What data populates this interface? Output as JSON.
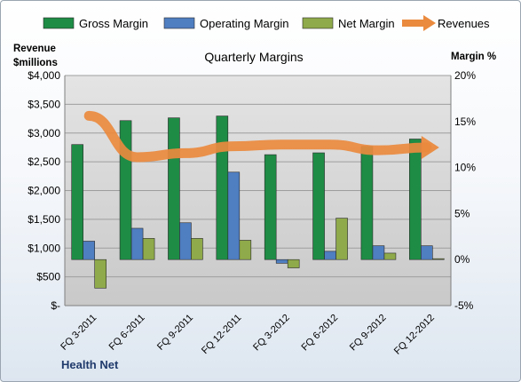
{
  "chart_data": {
    "type": "bar",
    "title": "Quarterly Margins",
    "company": "Health Net",
    "categories": [
      "FQ 3-2011",
      "FQ 6-2011",
      "FQ 9-2011",
      "FQ 12-2011",
      "FQ 3-2012",
      "FQ 6-2012",
      "FQ 9-2012",
      "FQ 12-2012"
    ],
    "left_axis": {
      "title_line1": "Revenue",
      "title_line2": "$millions",
      "range": [
        0,
        4000
      ],
      "ticks": [
        "$-",
        "$500",
        "$1,000",
        "$1,500",
        "$2,000",
        "$2,500",
        "$3,000",
        "$3,500",
        "$4,000"
      ]
    },
    "right_axis": {
      "title": "Margin %",
      "range": [
        -5,
        20
      ],
      "ticks": [
        "-5%",
        "0%",
        "5%",
        "10%",
        "15%",
        "20%"
      ]
    },
    "series": [
      {
        "name": "Gross Margin",
        "kind": "bar",
        "axis": "right",
        "color": "#1e8c45",
        "values": [
          12.5,
          15.1,
          15.4,
          15.6,
          11.4,
          11.6,
          12.3,
          13.1
        ]
      },
      {
        "name": "Operating Margin",
        "kind": "bar",
        "axis": "right",
        "color": "#4f7ec1",
        "values": [
          2.0,
          3.4,
          4.0,
          9.5,
          -0.4,
          0.9,
          1.5,
          1.5
        ]
      },
      {
        "name": "Net Margin",
        "kind": "bar",
        "axis": "right",
        "color": "#8faa4a",
        "values": [
          -3.1,
          2.3,
          2.3,
          2.1,
          -0.9,
          4.5,
          0.7,
          0.1
        ]
      },
      {
        "name": "Revenues",
        "kind": "line",
        "axis": "left",
        "color": "#ea8a3e",
        "values": [
          3300,
          2580,
          2650,
          2770,
          2800,
          2800,
          2700,
          2750
        ]
      }
    ],
    "grid": true,
    "legend_position": "top"
  }
}
